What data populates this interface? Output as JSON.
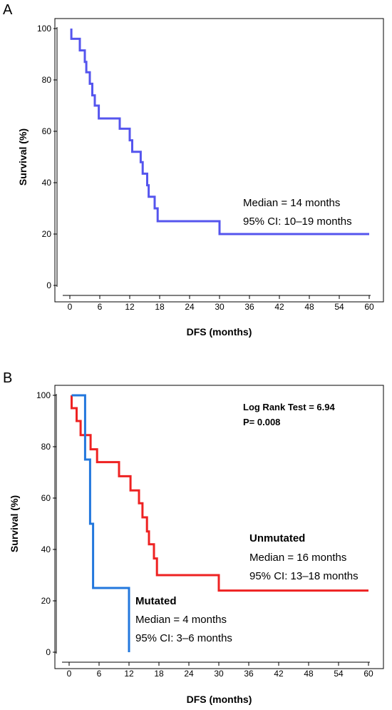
{
  "panels": {
    "a": {
      "label": "A"
    },
    "b": {
      "label": "B"
    }
  },
  "chart_data": [
    {
      "type": "line",
      "step": true,
      "xlabel": "DFS (months)",
      "ylabel": "Survival (%)",
      "xlim": [
        0,
        60
      ],
      "ylim": [
        0,
        100
      ],
      "xticks": [
        0,
        6,
        12,
        18,
        24,
        30,
        36,
        42,
        48,
        54,
        60
      ],
      "yticks": [
        0,
        20,
        40,
        60,
        80,
        100
      ],
      "grid": false,
      "series": [
        {
          "color": "#5555ee",
          "points": [
            [
              0.3,
              100
            ],
            [
              0.3,
              96
            ],
            [
              2,
              96
            ],
            [
              2,
              91.5
            ],
            [
              3,
              91.5
            ],
            [
              3,
              87
            ],
            [
              3.3,
              87
            ],
            [
              3.3,
              83
            ],
            [
              4,
              83
            ],
            [
              4,
              78.5
            ],
            [
              4.5,
              78.5
            ],
            [
              4.5,
              74
            ],
            [
              5,
              74
            ],
            [
              5,
              70
            ],
            [
              5.8,
              70
            ],
            [
              5.8,
              65
            ],
            [
              10,
              65
            ],
            [
              10,
              61
            ],
            [
              12,
              61
            ],
            [
              12,
              56.5
            ],
            [
              12.5,
              56.5
            ],
            [
              12.5,
              52
            ],
            [
              14.2,
              52
            ],
            [
              14.2,
              48
            ],
            [
              14.6,
              48
            ],
            [
              14.6,
              43.5
            ],
            [
              15.5,
              43.5
            ],
            [
              15.5,
              39
            ],
            [
              15.8,
              39
            ],
            [
              15.8,
              34.5
            ],
            [
              17,
              34.5
            ],
            [
              17,
              30
            ],
            [
              17.6,
              30
            ],
            [
              17.6,
              25
            ],
            [
              30,
              25
            ],
            [
              30,
              20
            ],
            [
              60,
              20
            ]
          ]
        }
      ],
      "annotations": [
        {
          "text": "Median = 14 months"
        },
        {
          "text": "95% CI: 10–19 months"
        }
      ]
    },
    {
      "type": "line",
      "step": true,
      "xlabel": "DFS (months)",
      "ylabel": "Survival (%)",
      "xlim": [
        0,
        60
      ],
      "ylim": [
        0,
        100
      ],
      "xticks": [
        0,
        6,
        12,
        18,
        24,
        30,
        36,
        42,
        48,
        54,
        60
      ],
      "yticks": [
        0,
        20,
        40,
        60,
        80,
        100
      ],
      "grid": false,
      "series": [
        {
          "name": "Unmutated",
          "color": "#ee2222",
          "points": [
            [
              0.5,
              100
            ],
            [
              0.5,
              95
            ],
            [
              1.5,
              95
            ],
            [
              1.5,
              90
            ],
            [
              2.3,
              90
            ],
            [
              2.3,
              84.5
            ],
            [
              4.3,
              84.5
            ],
            [
              4.3,
              79
            ],
            [
              5.6,
              79
            ],
            [
              5.6,
              74
            ],
            [
              10,
              74
            ],
            [
              10,
              68.5
            ],
            [
              12.3,
              68.5
            ],
            [
              12.3,
              63
            ],
            [
              14,
              63
            ],
            [
              14,
              58
            ],
            [
              14.7,
              58
            ],
            [
              14.7,
              52.5
            ],
            [
              15.6,
              52.5
            ],
            [
              15.6,
              47
            ],
            [
              16,
              47
            ],
            [
              16,
              42
            ],
            [
              17,
              42
            ],
            [
              17,
              36.5
            ],
            [
              17.6,
              36.5
            ],
            [
              17.6,
              30
            ],
            [
              30,
              30
            ],
            [
              30,
              24
            ],
            [
              60,
              24
            ]
          ]
        },
        {
          "name": "Mutated",
          "color": "#2277dd",
          "points": [
            [
              0.5,
              100
            ],
            [
              3.2,
              100
            ],
            [
              3.2,
              75
            ],
            [
              4.2,
              75
            ],
            [
              4.2,
              50
            ],
            [
              4.8,
              50
            ],
            [
              4.8,
              25
            ],
            [
              12,
              25
            ],
            [
              12,
              0
            ]
          ]
        }
      ],
      "annotations": [
        {
          "text": "Log Rank Test = 6.94"
        },
        {
          "text": "P= 0.008"
        },
        {
          "text": "Unmutated"
        },
        {
          "text": "Median = 16 months"
        },
        {
          "text": "95% CI: 13–18 months"
        },
        {
          "text": "Mutated"
        },
        {
          "text": "Median = 4 months"
        },
        {
          "text": "95% CI: 3–6 months"
        }
      ]
    }
  ]
}
